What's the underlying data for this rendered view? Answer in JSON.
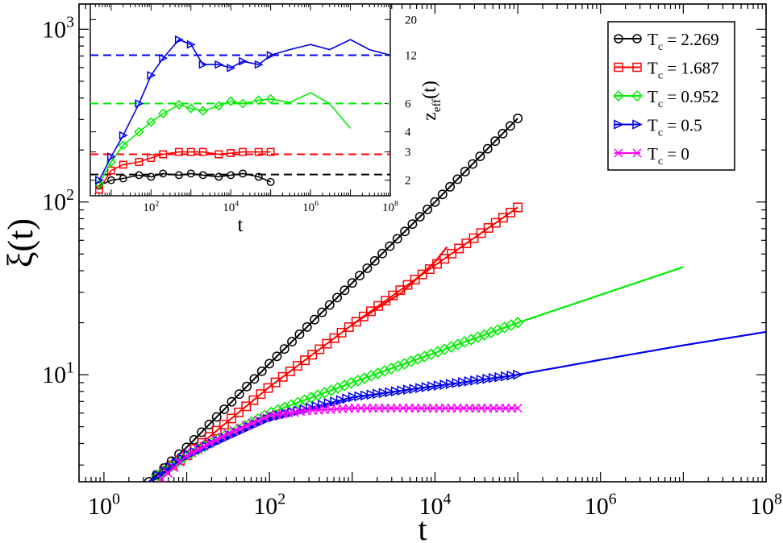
{
  "chart_data": [
    {
      "type": "line",
      "panel": "main",
      "xlabel": "t",
      "ylabel": "ξ(t)",
      "xscale": "log",
      "yscale": "log",
      "xlim": [
        0.5,
        100000000
      ],
      "ylim": [
        2.4,
        1400
      ],
      "x_ticks": [
        {
          "value": 1,
          "base": "10",
          "exp": "0"
        },
        {
          "value": 100,
          "base": "10",
          "exp": "2"
        },
        {
          "value": 10000,
          "base": "10",
          "exp": "4"
        },
        {
          "value": 1000000,
          "base": "10",
          "exp": "6"
        },
        {
          "value": 100000000,
          "base": "10",
          "exp": "8"
        }
      ],
      "y_ticks": [
        {
          "value": 10,
          "base": "10",
          "exp": "1"
        },
        {
          "value": 100,
          "base": "10",
          "exp": "2"
        },
        {
          "value": 1000,
          "base": "10",
          "exp": "3"
        }
      ],
      "legend": {
        "position": "top-right",
        "entries": [
          {
            "series": 0,
            "prefix": "T",
            "sub": "c",
            "suffix": " = 2.269"
          },
          {
            "series": 1,
            "prefix": "T",
            "sub": "c",
            "suffix": " = 1.687"
          },
          {
            "series": 2,
            "prefix": "T",
            "sub": "c",
            "suffix": " = 0.952"
          },
          {
            "series": 3,
            "prefix": "T",
            "sub": "c",
            "suffix": " = 0.5"
          },
          {
            "series": 4,
            "prefix": "T",
            "sub": "c",
            "suffix": " = 0"
          }
        ]
      },
      "series": [
        {
          "name": "Tc = 2.269",
          "color": "#000000",
          "marker": "circle",
          "x": [
            3.5,
            10,
            100,
            1000,
            10000,
            100000
          ],
          "y": [
            2.4,
            3.8,
            11.6,
            34,
            100,
            305
          ],
          "marker_xrange": [
            3.5,
            100000
          ],
          "marker_count": 50
        },
        {
          "name": "Tc = 1.687",
          "color": "#ff0000",
          "marker": "square",
          "x": [
            3.5,
            10,
            100,
            1000,
            10000,
            100000
          ],
          "y": [
            2.4,
            3.4,
            8.5,
            19.5,
            43,
            93
          ],
          "marker_xrange": [
            4.5,
            100000
          ],
          "marker_count": 50,
          "line_tail": {
            "x": [
              1000,
              4000,
              10000,
              14000
            ],
            "y": [
              19.5,
              30,
              45,
              55
            ]
          }
        },
        {
          "name": "Tc = 0.952",
          "color": "#00ee00",
          "marker": "diamond",
          "x": [
            3.5,
            10,
            100,
            1000,
            10000,
            100000
          ],
          "y": [
            2.4,
            3.4,
            6.0,
            9.0,
            13.4,
            20
          ],
          "marker_xrange": [
            4.5,
            100000
          ],
          "marker_count": 55,
          "line_tail": {
            "x": [
              100000,
              1000000,
              10000000
            ],
            "y": [
              20,
              29,
              42
            ]
          }
        },
        {
          "name": "Tc = 0.5",
          "color": "#0000ee",
          "marker": "triangle-right",
          "x": [
            3.5,
            10,
            100,
            1000,
            10000,
            100000
          ],
          "y": [
            2.4,
            3.4,
            5.6,
            7.4,
            8.6,
            10
          ],
          "marker_xrange": [
            4.5,
            100000
          ],
          "marker_count": 60,
          "line_tail": {
            "x": [
              100000,
              1000000,
              10000000,
              100000000
            ],
            "y": [
              10,
              12.2,
              14.8,
              17.7
            ]
          }
        },
        {
          "name": "Tc = 0",
          "color": "#ff00ff",
          "marker": "x",
          "x": [
            5,
            10,
            30,
            100,
            300,
            1000,
            100000
          ],
          "y": [
            2.5,
            3.4,
            4.5,
            5.8,
            6.2,
            6.4,
            6.4
          ],
          "marker_xrange": [
            5,
            100000
          ],
          "marker_count": 60
        }
      ]
    },
    {
      "type": "line",
      "panel": "inset",
      "xlabel": "t",
      "ylabel": "z_eff(t)",
      "ylabel_prefix": "z",
      "ylabel_sub": "eff",
      "ylabel_suffix": "(t)",
      "xscale": "log",
      "yscale": "log",
      "xlim": [
        3,
        100000000
      ],
      "ylim": [
        1.6,
        25
      ],
      "x_ticks": [
        {
          "value": 100,
          "base": "10",
          "exp": "2"
        },
        {
          "value": 10000,
          "base": "10",
          "exp": "4"
        },
        {
          "value": 1000000,
          "base": "10",
          "exp": "6"
        },
        {
          "value": 100000000,
          "base": "10",
          "exp": "8"
        }
      ],
      "y_ticks": [
        2,
        3,
        4,
        6,
        12,
        20
      ],
      "reference_lines": [
        {
          "y": 2.17,
          "color": "#000000"
        },
        {
          "y": 2.9,
          "color": "#ff0000"
        },
        {
          "y": 6.0,
          "color": "#00ee00"
        },
        {
          "y": 12.0,
          "color": "#0000ee"
        }
      ],
      "series": [
        {
          "name": "Tc = 2.269",
          "color": "#000000",
          "marker": "circle",
          "x": [
            5,
            10,
            20,
            50,
            100,
            200,
            500,
            1000,
            2000,
            5000,
            10000,
            20000,
            50000,
            100000
          ],
          "y": [
            1.85,
            2.0,
            2.05,
            2.15,
            2.1,
            2.2,
            2.15,
            2.2,
            2.15,
            2.1,
            2.15,
            2.2,
            2.1,
            1.95
          ]
        },
        {
          "name": "Tc = 1.687",
          "color": "#ff0000",
          "marker": "square",
          "x": [
            5,
            10,
            20,
            50,
            100,
            200,
            500,
            1000,
            2000,
            5000,
            10000,
            20000,
            50000,
            100000
          ],
          "y": [
            1.75,
            2.3,
            2.5,
            2.6,
            2.75,
            2.9,
            3.0,
            3.0,
            3.0,
            2.9,
            2.95,
            3.0,
            3.0,
            3.0
          ]
        },
        {
          "name": "Tc = 0.952",
          "color": "#00ee00",
          "marker": "diamond",
          "x": [
            5,
            10,
            20,
            50,
            100,
            200,
            500,
            1000,
            2000,
            5000,
            10000,
            20000,
            50000,
            100000,
            300000,
            1000000,
            3000000,
            10000000
          ],
          "y": [
            1.9,
            2.6,
            3.3,
            4.0,
            4.6,
            5.2,
            5.9,
            5.6,
            5.4,
            5.8,
            6.2,
            6.0,
            6.3,
            6.4,
            6.1,
            7.0,
            6.0,
            4.2
          ]
        },
        {
          "name": "Tc = 0.5",
          "color": "#0000ee",
          "marker": "triangle-right",
          "x": [
            5,
            10,
            20,
            50,
            100,
            200,
            500,
            1000,
            2000,
            5000,
            10000,
            20000,
            50000,
            100000,
            300000,
            1000000,
            3000000,
            10000000,
            30000000,
            100000000
          ],
          "y": [
            2.0,
            2.8,
            3.8,
            6.0,
            9.0,
            11.5,
            15.0,
            14.0,
            10.5,
            10.5,
            10.0,
            11.0,
            10.5,
            12.0,
            13.0,
            14.0,
            13.0,
            15.0,
            13.0,
            12.0
          ]
        }
      ]
    }
  ]
}
